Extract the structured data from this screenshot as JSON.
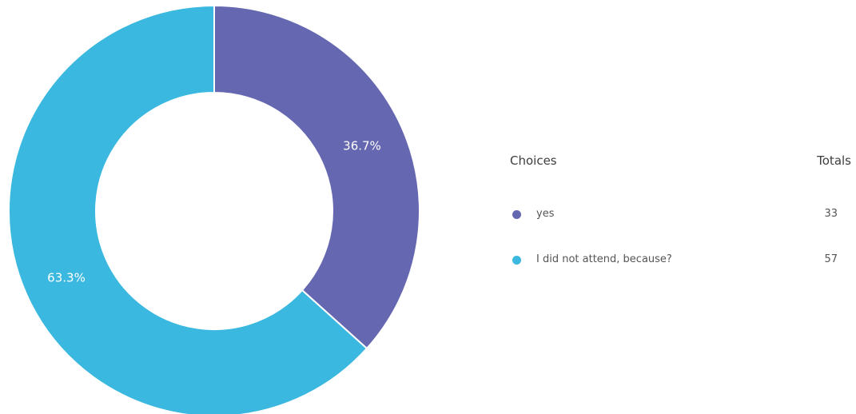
{
  "chart_data": {
    "type": "pie",
    "donut": true,
    "legend_placement": "right",
    "legend_headers": {
      "choices": "Choices",
      "totals": "Totals"
    },
    "slices": [
      {
        "name": "yes",
        "value": 33,
        "percent_label": "36.7%",
        "color": "#6567b0"
      },
      {
        "name": "I did not attend, because?",
        "value": 57,
        "percent_label": "63.3%",
        "color": "#3ab8e0"
      }
    ]
  }
}
